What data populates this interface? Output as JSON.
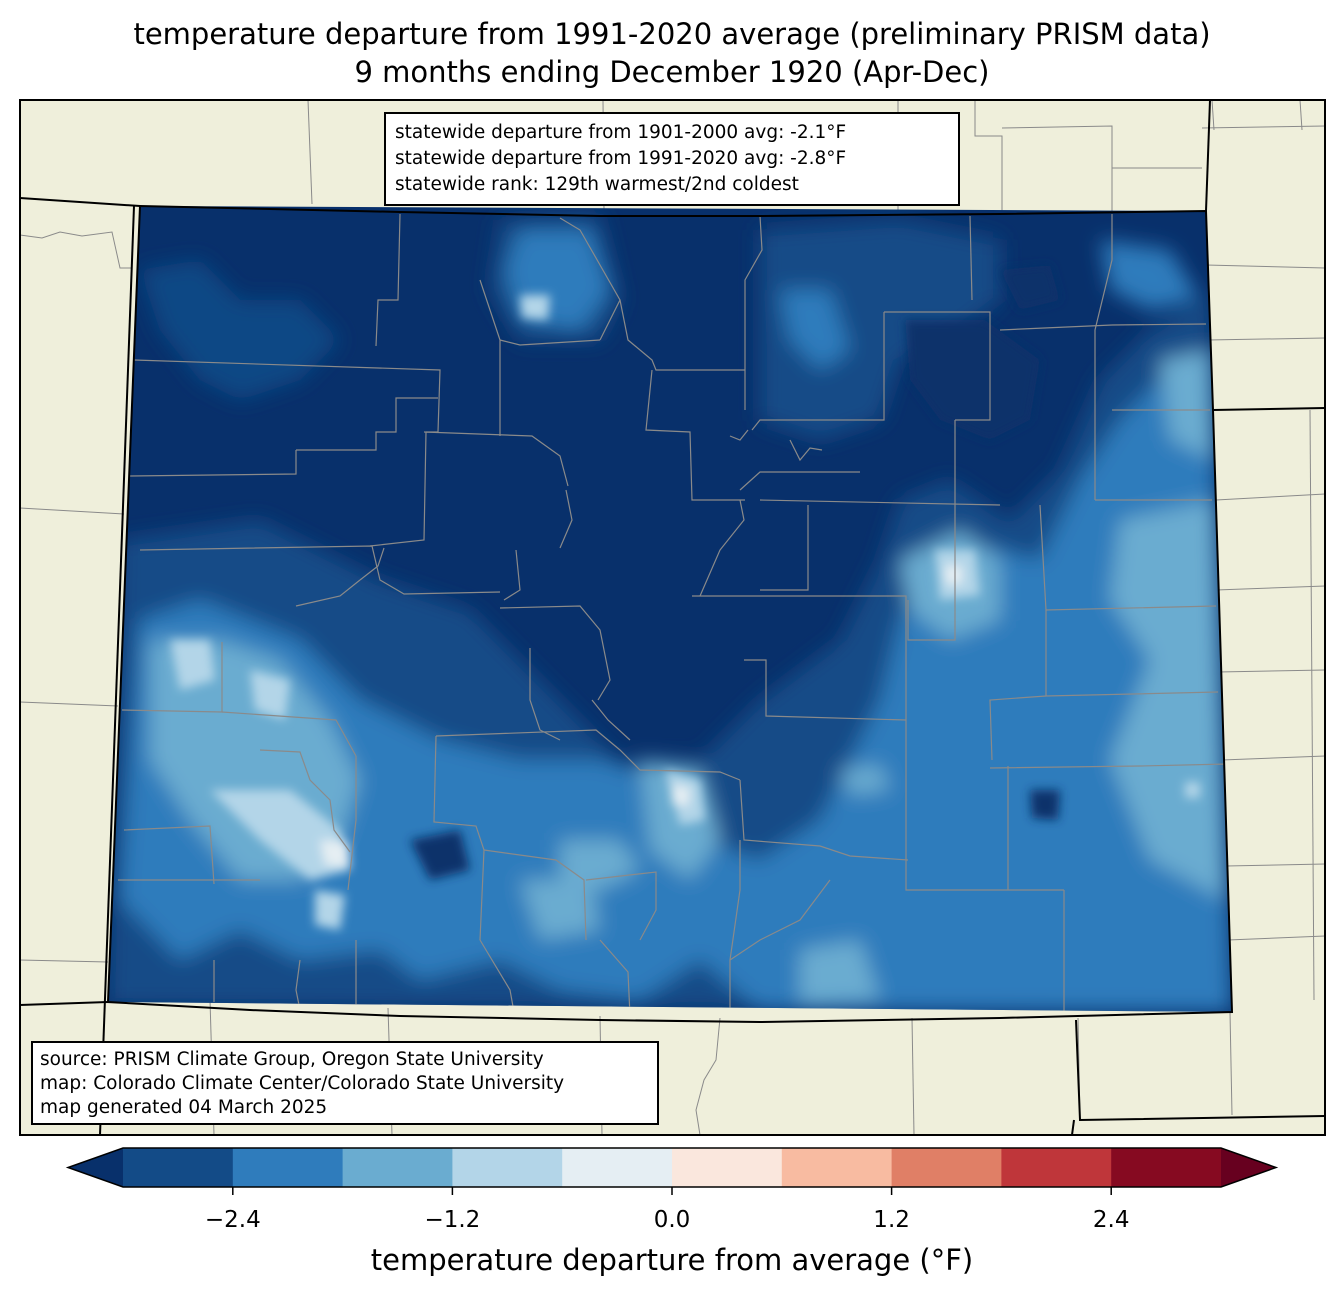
{
  "title": {
    "line1": "temperature departure from 1991-2020 average (preliminary PRISM data)",
    "line2": "9 months ending December 1920 (Apr-Dec)"
  },
  "stats": {
    "line1": "statewide departure from 1901-2000 avg: -2.1°F",
    "line2": "statewide departure from 1991-2020 avg: -2.8°F",
    "line3": "statewide rank: 129th warmest/2nd coldest"
  },
  "source": {
    "line1": "source: PRISM Climate Group, Oregon State University",
    "line2": "map: Colorado Climate Center/Colorado State University",
    "line3": "map generated 04 March 2025"
  },
  "colorbar": {
    "label": "temperature departure from average (°F)",
    "min": -3.0,
    "max": 3.0,
    "step": 0.6,
    "extend": "both",
    "ticks": [
      {
        "value": -2.4,
        "label": "−2.4"
      },
      {
        "value": -1.2,
        "label": "−1.2"
      },
      {
        "value": 0.0,
        "label": "0.0"
      },
      {
        "value": 1.2,
        "label": "1.2"
      },
      {
        "value": 2.4,
        "label": "2.4"
      }
    ],
    "colors": [
      "#08306b",
      "#134b87",
      "#2f7cbc",
      "#6aacd0",
      "#b3d5e8",
      "#e5eef3",
      "#fae7dd",
      "#f8bba1",
      "#e07f66",
      "#bf363a",
      "#860a21",
      "#67001f"
    ]
  },
  "map": {
    "region": "Colorado",
    "land_color": "#efefdb",
    "border_color": "#808080",
    "dominant_levels": [
      "<-3.0",
      "-3.0 to -2.4",
      "-2.4 to -1.8",
      "-1.8 to -1.2",
      "-1.2 to -0.6",
      "-0.6 to 0.0"
    ]
  }
}
